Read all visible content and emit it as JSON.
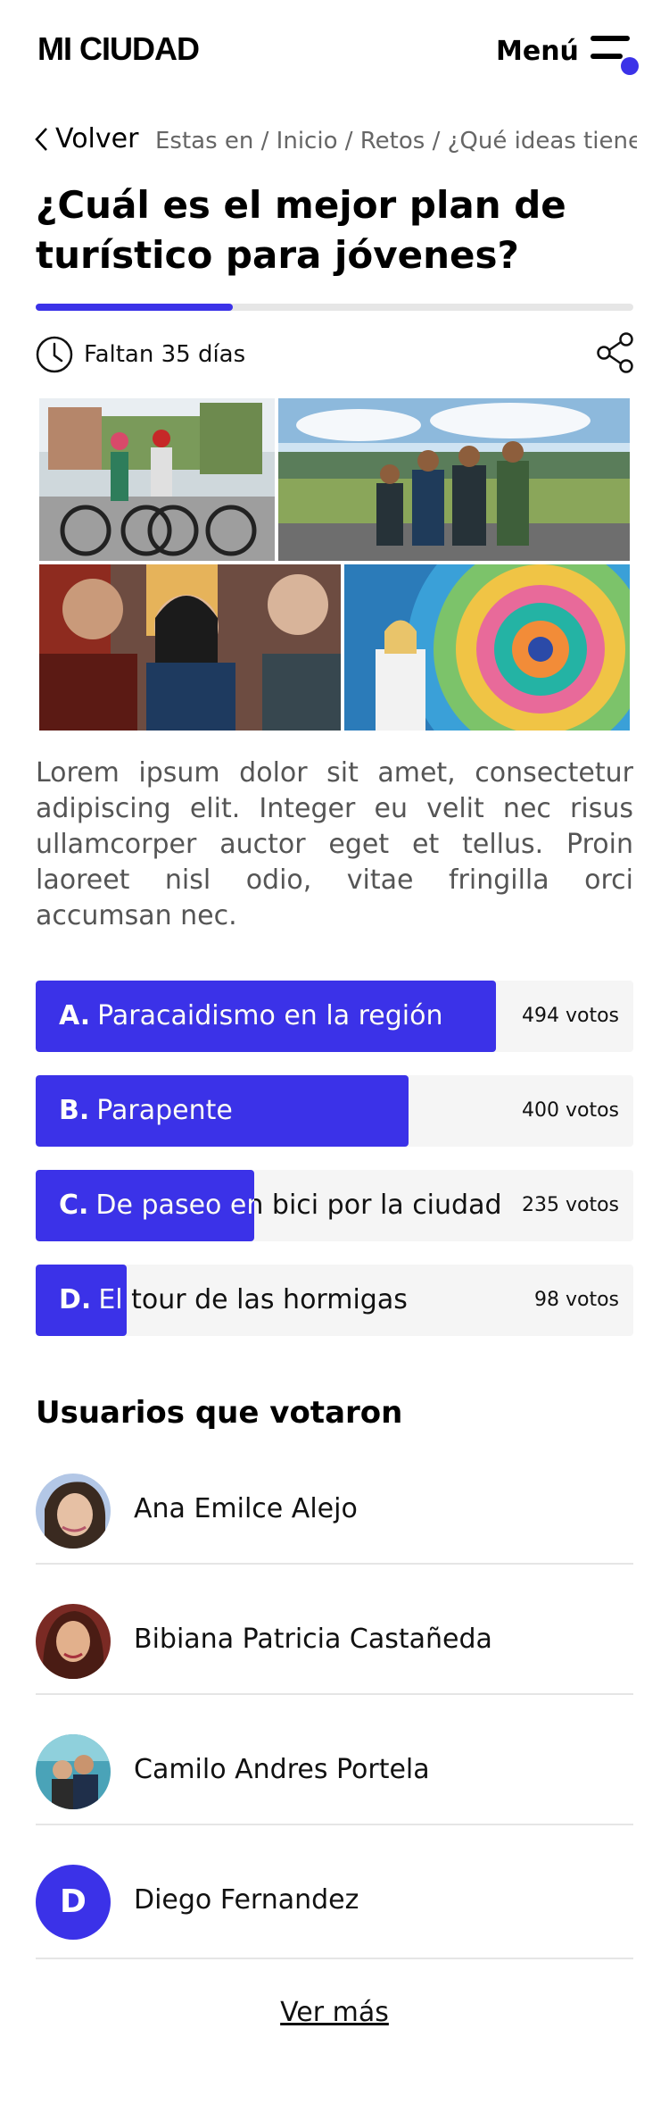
{
  "header": {
    "logo": "MI CIUDAD",
    "menu_label": "Menú",
    "menu_icon": "hamburger-menu-icon"
  },
  "nav": {
    "back_label": "Volver",
    "breadcrumb": "Estas en / Inicio / Retos / ¿Qué ideas tiene..."
  },
  "challenge": {
    "title": "¿Cuál es el mejor plan de turístico para jóvenes?",
    "progress_fraction": 0.33,
    "deadline": "Faltan 35 días",
    "description": "Lorem ipsum dolor sit amet, consectetur adipiscing elit. Integer eu velit nec risus ullamcorper auctor eget et tellus. Proin laoreet nisl odio, vitae fringilla orci accumsan nec."
  },
  "options": [
    {
      "letter": "A.",
      "label": "Paracaidismo en la región",
      "votes": "494 votos",
      "vote_count": 494
    },
    {
      "letter": "B.",
      "label": "Parapente",
      "votes": "400 votos",
      "vote_count": 400
    },
    {
      "letter": "C.",
      "label": "De paseo en bici por la ciudad",
      "votes": "235 votos",
      "vote_count": 235
    },
    {
      "letter": "D.",
      "label": "El tour de las hormigas",
      "votes": "98 votos",
      "vote_count": 98
    }
  ],
  "voters": {
    "title": "Usuarios que votaron",
    "items": [
      {
        "name": "Ana Emilce Alejo"
      },
      {
        "name": "Bibiana Patricia Castañeda"
      },
      {
        "name": "Camilo Andres Portela"
      },
      {
        "name": "Diego Fernandez",
        "initial": "D"
      }
    ],
    "see_more": "Ver más"
  },
  "colors": {
    "accent": "#3b32e8",
    "track": "#f5f5f5",
    "text_muted": "#555555"
  }
}
